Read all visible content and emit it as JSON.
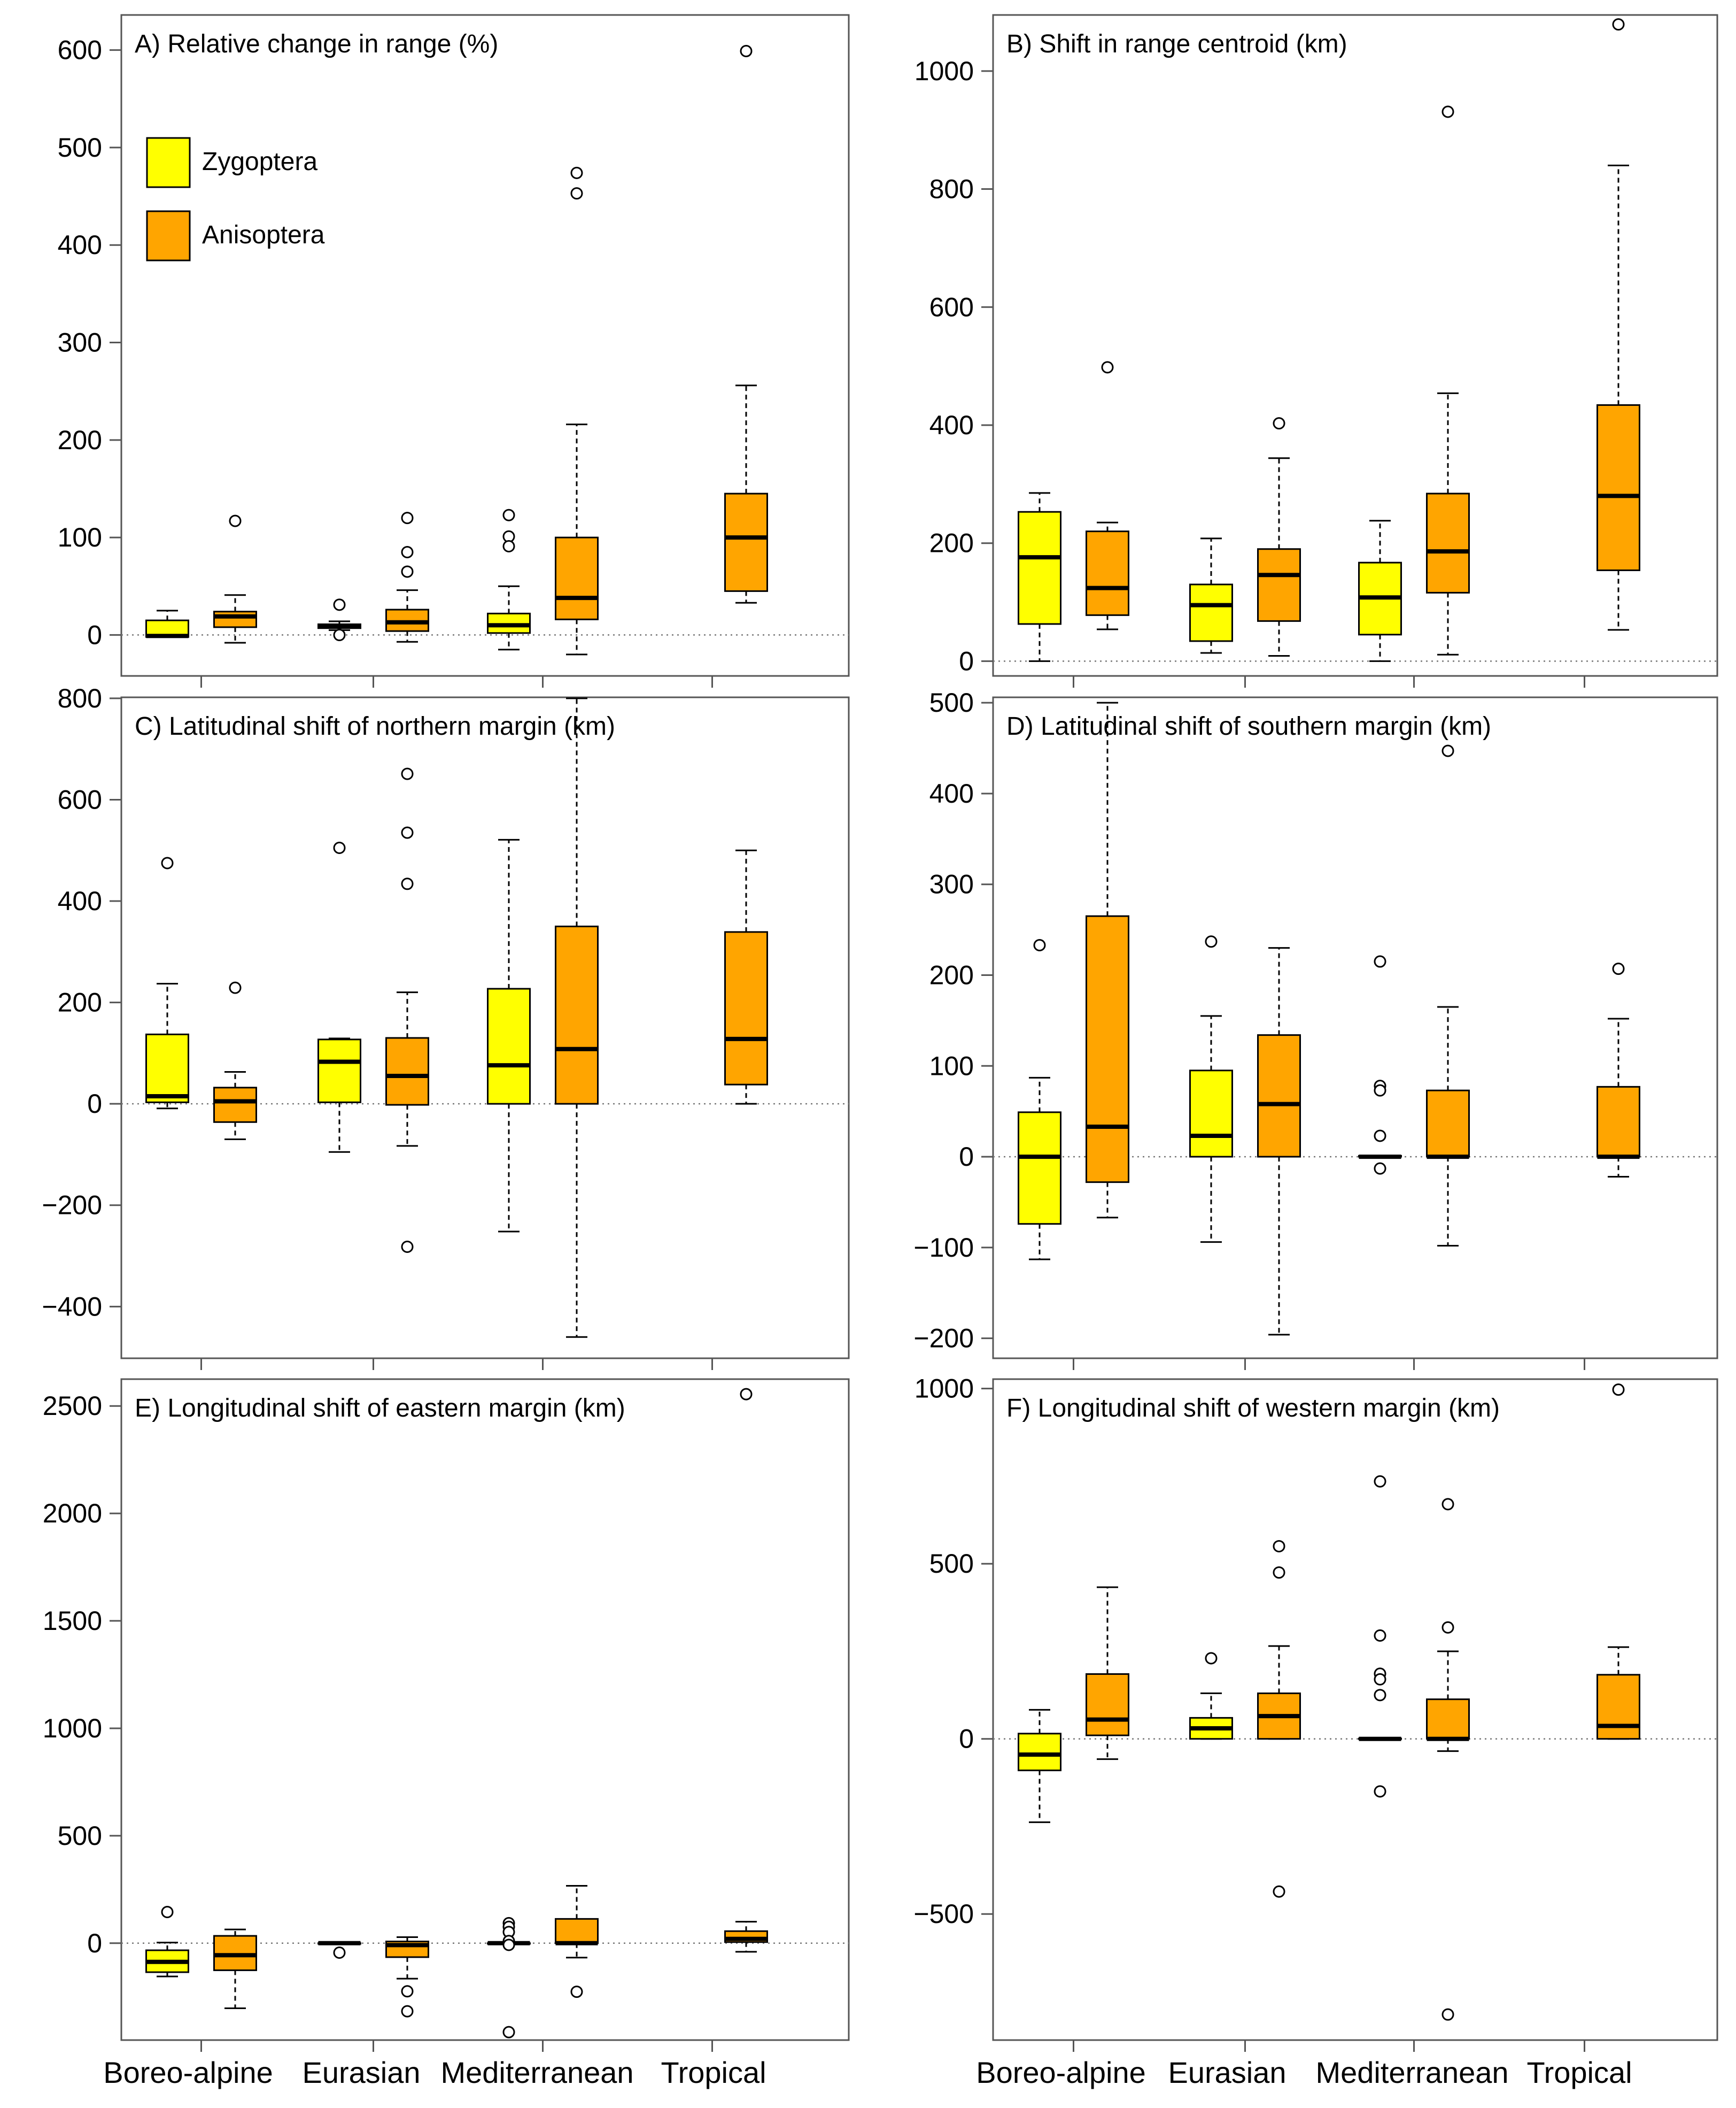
{
  "legend": {
    "items": [
      {
        "label": "Zygoptera",
        "color": "#ffff00"
      },
      {
        "label": "Anisoptera",
        "color": "#ffa500"
      }
    ]
  },
  "categories": [
    "Boreo-alpine",
    "Eurasian",
    "Mediterranean",
    "Tropical"
  ],
  "chart_data": [
    {
      "type": "boxplot",
      "title": "A) Relative change in range (%)",
      "ylim": [
        -42,
        636
      ],
      "yticks": [
        0,
        100,
        200,
        300,
        400,
        500,
        600
      ],
      "categories": [
        "Boreo-alpine",
        "Eurasian",
        "Mediterranean",
        "Tropical"
      ],
      "series": [
        {
          "name": "Zygoptera",
          "boxes": [
            {
              "category": "Boreo-alpine",
              "whislo": -2,
              "q1": -2,
              "med": -1,
              "q3": 15,
              "whishi": 25,
              "fliers": []
            },
            {
              "category": "Eurasian",
              "whislo": 5,
              "q1": 7,
              "med": 9,
              "q3": 11,
              "whishi": 14,
              "fliers": [
                31,
                0
              ]
            },
            {
              "category": "Mediterranean",
              "whislo": -15,
              "q1": 2,
              "med": 10,
              "q3": 22,
              "whishi": 50,
              "fliers": [
                123,
                101,
                91
              ]
            },
            null
          ]
        },
        {
          "name": "Anisoptera",
          "boxes": [
            {
              "category": "Boreo-alpine",
              "whislo": -8,
              "q1": 8,
              "med": 19,
              "q3": 24,
              "whishi": 41,
              "fliers": [
                117
              ]
            },
            {
              "category": "Eurasian",
              "whislo": -7,
              "q1": 4,
              "med": 13,
              "q3": 26,
              "whishi": 46,
              "fliers": [
                120,
                85,
                65
              ]
            },
            {
              "category": "Mediterranean",
              "whislo": -20,
              "q1": 16,
              "med": 38,
              "q3": 100,
              "whishi": 216,
              "fliers": [
                474,
                453
              ]
            },
            {
              "category": "Tropical",
              "whislo": 33,
              "q1": 45,
              "med": 100,
              "q3": 145,
              "whishi": 256,
              "fliers": [
                599
              ]
            }
          ]
        }
      ]
    },
    {
      "type": "boxplot",
      "title": "B) Shift in range centroid (km)",
      "ylim": [
        -25,
        1095
      ],
      "yticks": [
        0,
        200,
        400,
        600,
        800,
        1000
      ],
      "categories": [
        "Boreo-alpine",
        "Eurasian",
        "Mediterranean",
        "Tropical"
      ],
      "series": [
        {
          "name": "Zygoptera",
          "boxes": [
            {
              "category": "Boreo-alpine",
              "whislo": 0,
              "q1": 63,
              "med": 176,
              "q3": 253,
              "whishi": 285,
              "fliers": []
            },
            {
              "category": "Eurasian",
              "whislo": 14,
              "q1": 34,
              "med": 95,
              "q3": 130,
              "whishi": 208,
              "fliers": []
            },
            {
              "category": "Mediterranean",
              "whislo": 0,
              "q1": 45,
              "med": 108,
              "q3": 167,
              "whishi": 238,
              "fliers": []
            },
            null
          ]
        },
        {
          "name": "Anisoptera",
          "boxes": [
            {
              "category": "Boreo-alpine",
              "whislo": 54,
              "q1": 78,
              "med": 124,
              "q3": 220,
              "whishi": 235,
              "fliers": [
                498
              ]
            },
            {
              "category": "Eurasian",
              "whislo": 9,
              "q1": 68,
              "med": 146,
              "q3": 190,
              "whishi": 344,
              "fliers": [
                403
              ]
            },
            {
              "category": "Mediterranean",
              "whislo": 11,
              "q1": 116,
              "med": 186,
              "q3": 284,
              "whishi": 454,
              "fliers": [
                931
              ]
            },
            {
              "category": "Tropical",
              "whislo": 53,
              "q1": 154,
              "med": 280,
              "q3": 434,
              "whishi": 840,
              "fliers": [
                1079
              ]
            }
          ]
        }
      ]
    },
    {
      "type": "boxplot",
      "title": "C) Latitudinal shift of northern margin (km)",
      "ylim": [
        -502,
        802
      ],
      "yticks": [
        -400,
        -200,
        0,
        200,
        400,
        600,
        800
      ],
      "categories": [
        "Boreo-alpine",
        "Eurasian",
        "Mediterranean",
        "Tropical"
      ],
      "series": [
        {
          "name": "Zygoptera",
          "boxes": [
            {
              "category": "Boreo-alpine",
              "whislo": -9,
              "q1": 3,
              "med": 15,
              "q3": 137,
              "whishi": 237,
              "fliers": [
                475
              ]
            },
            {
              "category": "Eurasian",
              "whislo": -95,
              "q1": 3,
              "med": 83,
              "q3": 127,
              "whishi": 129,
              "fliers": [
                505
              ]
            },
            {
              "category": "Mediterranean",
              "whislo": -252,
              "q1": 0,
              "med": 76,
              "q3": 227,
              "whishi": 521,
              "fliers": []
            },
            null
          ]
        },
        {
          "name": "Anisoptera",
          "boxes": [
            {
              "category": "Boreo-alpine",
              "whislo": -70,
              "q1": -36,
              "med": 5,
              "q3": 32,
              "whishi": 63,
              "fliers": [
                229
              ]
            },
            {
              "category": "Eurasian",
              "whislo": -83,
              "q1": -2,
              "med": 55,
              "q3": 130,
              "whishi": 220,
              "fliers": [
                651,
                535,
                434,
                -282
              ]
            },
            {
              "category": "Mediterranean",
              "whislo": -460,
              "q1": 0,
              "med": 108,
              "q3": 350,
              "whishi": 800,
              "fliers": []
            },
            {
              "category": "Tropical",
              "whislo": 0,
              "q1": 38,
              "med": 128,
              "q3": 339,
              "whishi": 500,
              "fliers": []
            }
          ]
        }
      ]
    },
    {
      "type": "boxplot",
      "title": "D) Latitudinal shift of southern margin (km)",
      "ylim": [
        -222,
        506
      ],
      "yticks": [
        -200,
        -100,
        0,
        100,
        200,
        300,
        400,
        500
      ],
      "categories": [
        "Boreo-alpine",
        "Eurasian",
        "Mediterranean",
        "Tropical"
      ],
      "series": [
        {
          "name": "Zygoptera",
          "boxes": [
            {
              "category": "Boreo-alpine",
              "whislo": -113,
              "q1": -74,
              "med": 0,
              "q3": 49,
              "whishi": 87,
              "fliers": [
                233
              ]
            },
            {
              "category": "Eurasian",
              "whislo": -94,
              "q1": 0,
              "med": 23,
              "q3": 95,
              "whishi": 155,
              "fliers": [
                237
              ]
            },
            {
              "category": "Mediterranean",
              "whislo": 0,
              "q1": 0,
              "med": 0,
              "q3": 1,
              "whishi": 1,
              "fliers": [
                215,
                78,
                73,
                23,
                -13
              ]
            },
            null
          ]
        },
        {
          "name": "Anisoptera",
          "boxes": [
            {
              "category": "Boreo-alpine",
              "whislo": -67,
              "q1": -28,
              "med": 33,
              "q3": 265,
              "whishi": 500,
              "fliers": []
            },
            {
              "category": "Eurasian",
              "whislo": -196,
              "q1": 0,
              "med": 58,
              "q3": 134,
              "whishi": 230,
              "fliers": []
            },
            {
              "category": "Mediterranean",
              "whislo": -98,
              "q1": 0,
              "med": 0,
              "q3": 73,
              "whishi": 165,
              "fliers": [
                447
              ]
            },
            {
              "category": "Tropical",
              "whislo": -22,
              "q1": 0,
              "med": 0,
              "q3": 77,
              "whishi": 152,
              "fliers": [
                207
              ]
            }
          ]
        }
      ]
    },
    {
      "type": "boxplot",
      "title": "E) Longitudinal shift of eastern margin (km)",
      "ylim": [
        -451,
        2625
      ],
      "yticks": [
        0,
        500,
        1000,
        1500,
        2000,
        2500
      ],
      "categories": [
        "Boreo-alpine",
        "Eurasian",
        "Mediterranean",
        "Tropical"
      ],
      "series": [
        {
          "name": "Zygoptera",
          "boxes": [
            {
              "category": "Boreo-alpine",
              "whislo": -155,
              "q1": -135,
              "med": -87,
              "q3": -33,
              "whishi": 3,
              "fliers": [
                145
              ]
            },
            {
              "category": "Eurasian",
              "whislo": 0,
              "q1": 0,
              "med": 0,
              "q3": 0,
              "whishi": 0,
              "fliers": [
                -44
              ]
            },
            {
              "category": "Mediterranean",
              "whislo": 0,
              "q1": 0,
              "med": 0,
              "q3": 0,
              "whishi": 0,
              "fliers": [
                93,
                76,
                52,
                10,
                -8,
                -414
              ]
            },
            null
          ]
        },
        {
          "name": "Anisoptera",
          "boxes": [
            {
              "category": "Boreo-alpine",
              "whislo": -303,
              "q1": -126,
              "med": -56,
              "q3": 34,
              "whishi": 64,
              "fliers": []
            },
            {
              "category": "Eurasian",
              "whislo": -165,
              "q1": -65,
              "med": -9,
              "q3": 8,
              "whishi": 28,
              "fliers": [
                -224,
                -317
              ]
            },
            {
              "category": "Mediterranean",
              "whislo": -67,
              "q1": 0,
              "med": 0,
              "q3": 113,
              "whishi": 267,
              "fliers": [
                -226
              ]
            },
            {
              "category": "Tropical",
              "whislo": -40,
              "q1": 5,
              "med": 20,
              "q3": 56,
              "whishi": 100,
              "fliers": [
                2555
              ]
            }
          ]
        }
      ]
    },
    {
      "type": "boxplot",
      "title": "F) Longitudinal shift of western margin (km)",
      "ylim": [
        -860,
        1027
      ],
      "yticks": [
        -500,
        0,
        500,
        1000
      ],
      "categories": [
        "Boreo-alpine",
        "Eurasian",
        "Mediterranean",
        "Tropical"
      ],
      "series": [
        {
          "name": "Zygoptera",
          "boxes": [
            {
              "category": "Boreo-alpine",
              "whislo": -238,
              "q1": -90,
              "med": -45,
              "q3": 15,
              "whishi": 83,
              "fliers": []
            },
            {
              "category": "Eurasian",
              "whislo": 0,
              "q1": 0,
              "med": 30,
              "q3": 60,
              "whishi": 130,
              "fliers": [
                230
              ]
            },
            {
              "category": "Mediterranean",
              "whislo": 0,
              "q1": 0,
              "med": 0,
              "q3": 1,
              "whishi": 1,
              "fliers": [
                735,
                295,
                186,
                170,
                125,
                -150
              ]
            },
            null
          ]
        },
        {
          "name": "Anisoptera",
          "boxes": [
            {
              "category": "Boreo-alpine",
              "whislo": -58,
              "q1": 10,
              "med": 55,
              "q3": 185,
              "whishi": 433,
              "fliers": []
            },
            {
              "category": "Eurasian",
              "whislo": 0,
              "q1": 0,
              "med": 65,
              "q3": 130,
              "whishi": 265,
              "fliers": [
                550,
                475,
                -436
              ]
            },
            {
              "category": "Mediterranean",
              "whislo": -35,
              "q1": 0,
              "med": 0,
              "q3": 113,
              "whishi": 250,
              "fliers": [
                670,
                318,
                -787
              ]
            },
            {
              "category": "Tropical",
              "whislo": 0,
              "q1": 0,
              "med": 37,
              "q3": 183,
              "whishi": 262,
              "fliers": [
                997
              ]
            }
          ]
        }
      ]
    }
  ]
}
